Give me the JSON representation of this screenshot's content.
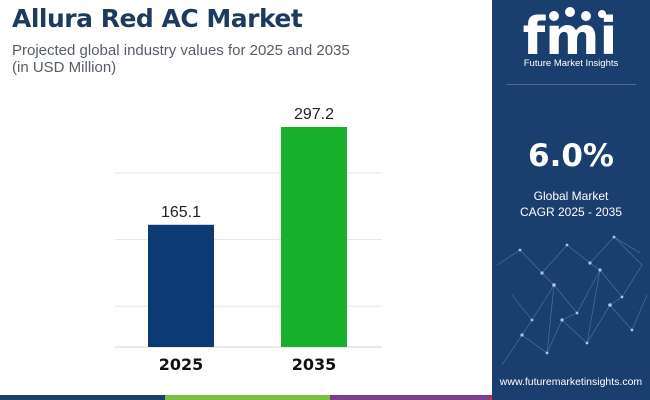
{
  "header": {
    "title": "Allura Red AC Market",
    "subtitle_line1": "Projected global industry values for 2025 and 2035",
    "subtitle_line2": "(in USD Million)"
  },
  "chart_data": {
    "type": "bar",
    "categories": [
      "2025",
      "2035"
    ],
    "values": [
      165.1,
      297.2
    ],
    "data_labels": [
      "165.1",
      "297.2"
    ],
    "bar_colors": [
      "#0c3a72",
      "#16b02b"
    ],
    "ylim": [
      0,
      330
    ],
    "grid": true,
    "title": "",
    "xlabel": "",
    "ylabel": ""
  },
  "sidebar": {
    "logo_text": "fmi",
    "logo_caption": "Future Market Insights",
    "cagr_value": "6.0%",
    "cagr_label_line1": "Global Market",
    "cagr_label_line2": "CAGR 2025 - 2035",
    "website": "www.futuremarketinsights.com"
  },
  "colors": {
    "title": "#1f3a5f",
    "sidebar_bg": "#1a3e6e",
    "bar_2025": "#0c3a72",
    "bar_2035": "#16b02b",
    "footer_stripe": [
      "#1a3e6e",
      "#7ac143",
      "#7b3f8f",
      "#e8292f"
    ]
  }
}
